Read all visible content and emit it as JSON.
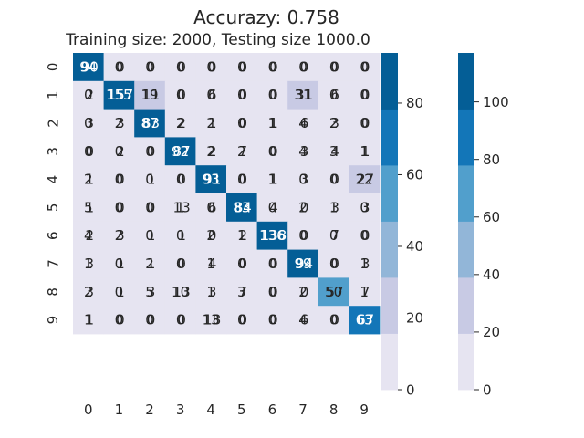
{
  "chart_data": {
    "type": "heatmap",
    "title": "Accurazy: 0.758",
    "subtitle": "Training size: 2000, Testing size 1000.0",
    "x_tick_labels": [
      "0",
      "1",
      "2",
      "3",
      "4",
      "5",
      "6",
      "7",
      "8",
      "9"
    ],
    "y_tick_labels": [
      "0",
      "1",
      "2",
      "3",
      "4",
      "5",
      "6",
      "7",
      "8",
      "9"
    ],
    "matrix_a": [
      [
        94,
        0,
        0,
        0,
        0,
        0,
        0,
        0,
        0,
        0
      ],
      [
        0,
        155,
        19,
        0,
        0,
        0,
        0,
        31,
        0,
        0
      ],
      [
        0,
        2,
        87,
        2,
        2,
        0,
        1,
        4,
        2,
        0
      ],
      [
        0,
        0,
        0,
        92,
        2,
        2,
        0,
        4,
        3,
        1
      ],
      [
        2,
        0,
        0,
        0,
        93,
        0,
        1,
        0,
        0,
        22
      ],
      [
        5,
        0,
        0,
        1,
        0,
        83,
        0,
        2,
        1,
        0
      ],
      [
        4,
        2,
        0,
        0,
        2,
        1,
        136,
        0,
        0,
        0
      ],
      [
        1,
        0,
        2,
        0,
        1,
        0,
        0,
        99,
        0,
        1
      ],
      [
        2,
        0,
        5,
        10,
        1,
        3,
        0,
        2,
        50,
        1
      ],
      [
        1,
        0,
        0,
        0,
        13,
        0,
        0,
        4,
        0,
        63
      ]
    ],
    "matrix_b": [
      [
        90,
        0,
        0,
        0,
        0,
        0,
        0,
        0,
        0,
        0
      ],
      [
        2,
        157,
        11,
        0,
        6,
        0,
        0,
        31,
        6,
        0
      ],
      [
        3,
        3,
        83,
        2,
        1,
        0,
        1,
        6,
        3,
        0
      ],
      [
        0,
        2,
        0,
        87,
        2,
        7,
        0,
        3,
        4,
        1
      ],
      [
        1,
        0,
        1,
        0,
        91,
        0,
        1,
        3,
        0,
        27
      ],
      [
        1,
        0,
        0,
        13,
        6,
        84,
        4,
        0,
        3,
        3
      ],
      [
        2,
        3,
        1,
        1,
        0,
        2,
        138,
        0,
        7,
        0
      ],
      [
        3,
        1,
        1,
        0,
        4,
        0,
        0,
        94,
        0,
        3
      ],
      [
        3,
        1,
        3,
        13,
        3,
        7,
        0,
        0,
        57,
        7
      ],
      [
        1,
        0,
        0,
        0,
        18,
        0,
        0,
        6,
        0,
        67
      ]
    ],
    "colorbar_a": {
      "ticks": [
        "0",
        "20",
        "40",
        "60",
        "80"
      ],
      "max": 94
    },
    "colorbar_b": {
      "ticks": [
        "0",
        "20",
        "40",
        "60",
        "80",
        "100"
      ],
      "max": 117
    },
    "colors": {
      "levels": [
        "#e6e4f1",
        "#c8cae4",
        "#92b6d8",
        "#519fcc",
        "#1376b8",
        "#045e96"
      ],
      "dark_text": "#262626",
      "light_text": "#ffffff"
    }
  }
}
